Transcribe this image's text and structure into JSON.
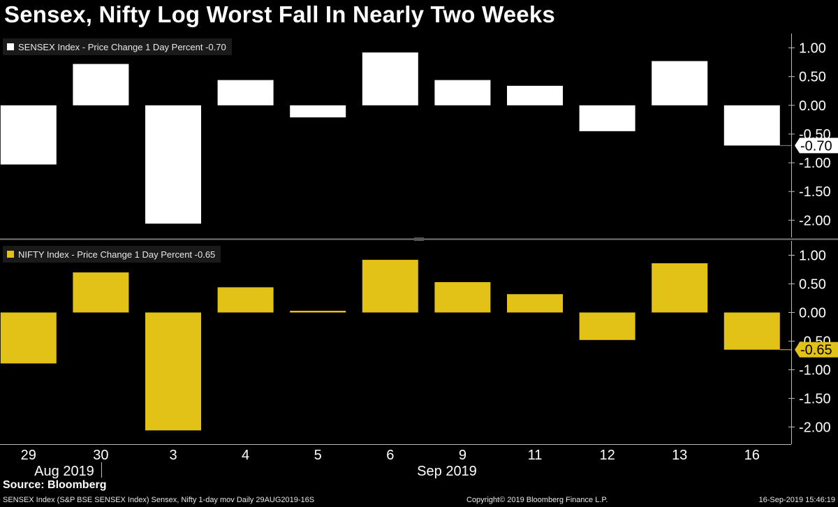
{
  "title": "Sensex, Nifty Log Worst Fall In Nearly Two Weeks",
  "source": "Source: Bloomberg",
  "footer": {
    "left": "SENSEX Index (S&P BSE SENSEX Index) Sensex, Nifty 1-day mov  Daily 29AUG2019-16S",
    "mid": "Copyright© 2019 Bloomberg Finance L.P.",
    "right": "16-Sep-2019 15:46:19"
  },
  "chart_data": [
    {
      "type": "bar",
      "legend_label": "SENSEX Index - Price Change 1 Day Percent -0.70",
      "color": "#ffffff",
      "last_value_label": "-0.70",
      "categories": [
        "29",
        "30",
        "3",
        "4",
        "5",
        "6",
        "9",
        "11",
        "12",
        "13",
        "16"
      ],
      "values": [
        -1.03,
        0.72,
        -2.06,
        0.44,
        -0.21,
        0.92,
        0.44,
        0.34,
        -0.45,
        0.77,
        -0.7
      ],
      "ylim": [
        -2.3,
        1.25
      ],
      "yticks": [
        1.0,
        0.5,
        0.0,
        -0.5,
        -1.0,
        -1.5,
        -2.0
      ],
      "ytick_labels": [
        "1.00",
        "0.50",
        "0.00",
        "-0.50",
        "-1.00",
        "-1.50",
        "-2.00"
      ]
    },
    {
      "type": "bar",
      "legend_label": "NIFTY Index - Price Change 1 Day Percent -0.65",
      "color": "#e3c217",
      "last_value_label": "-0.65",
      "categories": [
        "29",
        "30",
        "3",
        "4",
        "5",
        "6",
        "9",
        "11",
        "12",
        "13",
        "16"
      ],
      "values": [
        -0.89,
        0.7,
        -2.06,
        0.44,
        0.03,
        0.92,
        0.53,
        0.32,
        -0.48,
        0.86,
        -0.65
      ],
      "ylim": [
        -2.3,
        1.25
      ],
      "yticks": [
        1.0,
        0.5,
        0.0,
        -0.5,
        -1.0,
        -1.5,
        -2.0
      ],
      "ytick_labels": [
        "1.00",
        "0.50",
        "0.00",
        "-0.50",
        "-1.00",
        "-1.50",
        "-2.00"
      ]
    }
  ],
  "x_axis": {
    "tick_labels": [
      "29",
      "30",
      "3",
      "4",
      "5",
      "6",
      "9",
      "11",
      "12",
      "13",
      "16"
    ],
    "month_labels": [
      "Aug 2019",
      "Sep 2019"
    ]
  }
}
